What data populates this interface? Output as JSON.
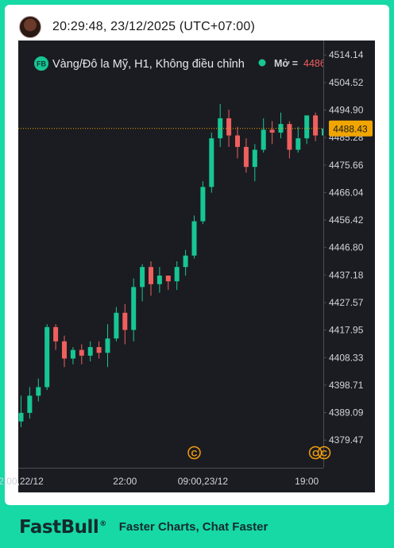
{
  "header": {
    "timestamp": "20:29:48, 23/12/2025 (UTC+07:00)"
  },
  "legend": {
    "badge": "FB",
    "symbol_title": "Vàng/Đô la Mỹ, H1, Không điều chỉnh",
    "open_label": "Mở =",
    "open_value": "4486"
  },
  "price_tag": "4488.43",
  "event_marker_glyph": "C",
  "footer": {
    "logo": "FastBull",
    "registered": "®",
    "tagline": "Faster Charts, Chat Faster"
  },
  "colors": {
    "up": "#17c695",
    "down": "#ef5f5f",
    "price_tag": "#f0a500",
    "event_marker": "#f29d0b",
    "brand": "#16d9a6"
  },
  "chart_data": {
    "type": "candlestick",
    "y_ticks": [
      "4514.14",
      "4504.52",
      "4494.90",
      "4485.28",
      "4475.66",
      "4466.04",
      "4456.42",
      "4446.80",
      "4437.18",
      "4427.57",
      "4417.95",
      "4408.33",
      "4398.71",
      "4389.09",
      "4379.47"
    ],
    "x_ticks": [
      "2:00,22/12",
      "22:00",
      "09:00,23/12",
      "19:00"
    ],
    "ylim": [
      4369.8,
      4519.2
    ],
    "last_price": 4488.43,
    "candles": [
      [
        4386.0,
        4395.0,
        4384.0,
        4389.0
      ],
      [
        4389.0,
        4398.0,
        4387.0,
        4395.0
      ],
      [
        4395.0,
        4401.0,
        4393.0,
        4398.0
      ],
      [
        4398.0,
        4420.0,
        4397.0,
        4419.0
      ],
      [
        4419.0,
        4420.0,
        4411.0,
        4414.0
      ],
      [
        4414.0,
        4416.0,
        4405.0,
        4408.0
      ],
      [
        4408.0,
        4412.0,
        4406.0,
        4411.0
      ],
      [
        4411.0,
        4413.0,
        4406.0,
        4409.0
      ],
      [
        4409.0,
        4414.0,
        4407.0,
        4412.0
      ],
      [
        4412.0,
        4414.0,
        4408.0,
        4410.0
      ],
      [
        4410.0,
        4420.0,
        4405.0,
        4415.0
      ],
      [
        4415.0,
        4426.0,
        4414.0,
        4424.0
      ],
      [
        4424.0,
        4427.0,
        4413.0,
        4418.0
      ],
      [
        4418.0,
        4436.0,
        4414.0,
        4433.0
      ],
      [
        4433.0,
        4441.0,
        4428.0,
        4440.0
      ],
      [
        4440.0,
        4442.0,
        4430.0,
        4434.0
      ],
      [
        4434.0,
        4440.0,
        4431.0,
        4437.0
      ],
      [
        4437.0,
        4437.0,
        4432.0,
        4435.0
      ],
      [
        4435.0,
        4442.0,
        4432.0,
        4440.0
      ],
      [
        4440.0,
        4446.0,
        4437.0,
        4444.0
      ],
      [
        4444.0,
        4458.0,
        4443.0,
        4456.0
      ],
      [
        4456.0,
        4470.0,
        4455.0,
        4468.0
      ],
      [
        4468.0,
        4487.0,
        4466.0,
        4485.0
      ],
      [
        4485.0,
        4497.0,
        4482.0,
        4492.0
      ],
      [
        4492.0,
        4495.0,
        4482.0,
        4486.0
      ],
      [
        4486.0,
        4489.0,
        4478.0,
        4482.0
      ],
      [
        4482.0,
        4485.0,
        4473.0,
        4475.0
      ],
      [
        4475.0,
        4483.0,
        4470.0,
        4481.0
      ],
      [
        4481.0,
        4492.0,
        4480.0,
        4488.0
      ],
      [
        4488.0,
        4491.0,
        4483.0,
        4487.0
      ],
      [
        4487.0,
        4494.0,
        4485.0,
        4490.0
      ],
      [
        4490.0,
        4491.0,
        4478.0,
        4481.0
      ],
      [
        4481.0,
        4489.0,
        4480.0,
        4485.0
      ],
      [
        4485.0,
        4493.0,
        4483.0,
        4493.0
      ],
      [
        4493.0,
        4494.0,
        4484.0,
        4486.0
      ],
      [
        4486.0,
        4489.0,
        4483.0,
        4488.4
      ]
    ],
    "event_markers_at_candle": [
      20,
      34,
      35
    ],
    "grid": false
  }
}
